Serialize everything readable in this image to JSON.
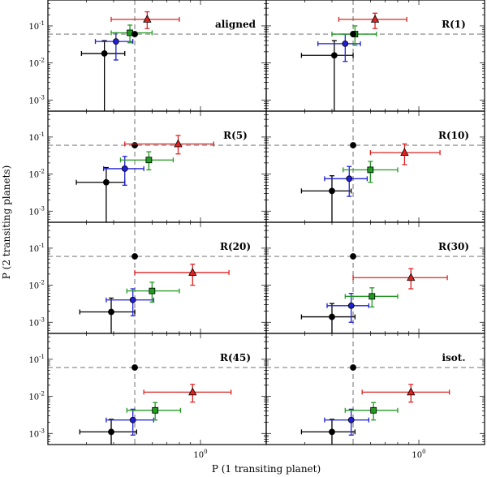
{
  "chart_data": {
    "type": "scatter",
    "xlabel": "P (1 transiting planet)",
    "ylabel": "P (2 transiting planets)",
    "xscale": "log",
    "yscale": "log",
    "xlim": [
      0.2,
      2.0
    ],
    "ylim": [
      0.0005,
      0.5
    ],
    "x_tick_labels": [
      {
        "value": 1,
        "label": "10^0"
      }
    ],
    "y_tick_labels": [
      {
        "value": 0.1,
        "label": "10^-1"
      },
      {
        "value": 0.01,
        "label": "10^-2"
      },
      {
        "value": 0.001,
        "label": "10^-3"
      }
    ],
    "reference_lines": {
      "x": 0.5,
      "y": 0.06
    },
    "series_styles": [
      {
        "name": "black",
        "marker": "circle",
        "color": "#000000"
      },
      {
        "name": "blue",
        "marker": "circle",
        "color": "#1f1fd6"
      },
      {
        "name": "green",
        "marker": "square",
        "color": "#229922"
      },
      {
        "name": "red",
        "marker": "triangle",
        "color": "#dd2222"
      }
    ],
    "panels": [
      {
        "label": "aligned",
        "points": [
          {
            "series": "black",
            "x": 0.363,
            "y": 0.018,
            "xlo": 0.285,
            "xhi": 0.45,
            "ylo": 0.0005,
            "yhi": 0.04
          },
          {
            "series": "blue",
            "x": 0.41,
            "y": 0.038,
            "xlo": 0.33,
            "xhi": 0.49,
            "ylo": 0.012,
            "yhi": 0.065
          },
          {
            "series": "green",
            "x": 0.475,
            "y": 0.065,
            "xlo": 0.39,
            "xhi": 0.6,
            "ylo": 0.035,
            "yhi": 0.105
          },
          {
            "series": "black",
            "x": 0.5,
            "y": 0.06
          },
          {
            "series": "red",
            "x": 0.57,
            "y": 0.15,
            "xlo": 0.39,
            "xhi": 0.8,
            "ylo": 0.085,
            "yhi": 0.24
          }
        ]
      },
      {
        "label": "R(1)",
        "points": [
          {
            "series": "black",
            "x": 0.41,
            "y": 0.016,
            "xlo": 0.29,
            "xhi": 0.5,
            "ylo": 0.0005,
            "yhi": 0.04
          },
          {
            "series": "blue",
            "x": 0.46,
            "y": 0.033,
            "xlo": 0.345,
            "xhi": 0.54,
            "ylo": 0.011,
            "yhi": 0.06
          },
          {
            "series": "green",
            "x": 0.51,
            "y": 0.06,
            "xlo": 0.4,
            "xhi": 0.64,
            "ylo": 0.03,
            "yhi": 0.1
          },
          {
            "series": "black",
            "x": 0.5,
            "y": 0.06
          },
          {
            "series": "red",
            "x": 0.63,
            "y": 0.15,
            "xlo": 0.43,
            "xhi": 0.88,
            "ylo": 0.085,
            "yhi": 0.22
          }
        ]
      },
      {
        "label": "R(5)",
        "points": [
          {
            "series": "black",
            "x": 0.37,
            "y": 0.006,
            "xlo": 0.27,
            "xhi": 0.45,
            "ylo": 0.0005,
            "yhi": 0.015
          },
          {
            "series": "blue",
            "x": 0.45,
            "y": 0.014,
            "xlo": 0.36,
            "xhi": 0.55,
            "ylo": 0.005,
            "yhi": 0.03
          },
          {
            "series": "green",
            "x": 0.58,
            "y": 0.024,
            "xlo": 0.43,
            "xhi": 0.75,
            "ylo": 0.013,
            "yhi": 0.04
          },
          {
            "series": "black",
            "x": 0.5,
            "y": 0.06
          },
          {
            "series": "red",
            "x": 0.79,
            "y": 0.065,
            "xlo": 0.45,
            "xhi": 1.15,
            "ylo": 0.035,
            "yhi": 0.11
          }
        ]
      },
      {
        "label": "R(10)",
        "points": [
          {
            "series": "black",
            "x": 0.4,
            "y": 0.0035,
            "xlo": 0.29,
            "xhi": 0.49,
            "ylo": 0.0005,
            "yhi": 0.009
          },
          {
            "series": "blue",
            "x": 0.48,
            "y": 0.0075,
            "xlo": 0.37,
            "xhi": 0.58,
            "ylo": 0.0025,
            "yhi": 0.016
          },
          {
            "series": "green",
            "x": 0.6,
            "y": 0.013,
            "xlo": 0.45,
            "xhi": 0.8,
            "ylo": 0.006,
            "yhi": 0.022
          },
          {
            "series": "black",
            "x": 0.5,
            "y": 0.06
          },
          {
            "series": "red",
            "x": 0.86,
            "y": 0.038,
            "xlo": 0.6,
            "xhi": 1.25,
            "ylo": 0.018,
            "yhi": 0.065
          }
        ]
      },
      {
        "label": "R(20)",
        "points": [
          {
            "series": "black",
            "x": 0.39,
            "y": 0.0019,
            "xlo": 0.28,
            "xhi": 0.5,
            "ylo": 0.0005,
            "yhi": 0.0045
          },
          {
            "series": "blue",
            "x": 0.49,
            "y": 0.004,
            "xlo": 0.37,
            "xhi": 0.61,
            "ylo": 0.0015,
            "yhi": 0.008
          },
          {
            "series": "green",
            "x": 0.6,
            "y": 0.007,
            "xlo": 0.46,
            "xhi": 0.8,
            "ylo": 0.0035,
            "yhi": 0.012
          },
          {
            "series": "black",
            "x": 0.5,
            "y": 0.06
          },
          {
            "series": "red",
            "x": 0.92,
            "y": 0.022,
            "xlo": 0.5,
            "xhi": 1.35,
            "ylo": 0.01,
            "yhi": 0.037
          }
        ]
      },
      {
        "label": "R(30)",
        "points": [
          {
            "series": "black",
            "x": 0.4,
            "y": 0.0014,
            "xlo": 0.29,
            "xhi": 0.51,
            "ylo": 0.0005,
            "yhi": 0.0032
          },
          {
            "series": "blue",
            "x": 0.49,
            "y": 0.0028,
            "xlo": 0.38,
            "xhi": 0.59,
            "ylo": 0.001,
            "yhi": 0.006
          },
          {
            "series": "green",
            "x": 0.61,
            "y": 0.005,
            "xlo": 0.46,
            "xhi": 0.8,
            "ylo": 0.0026,
            "yhi": 0.0085
          },
          {
            "series": "black",
            "x": 0.5,
            "y": 0.06
          },
          {
            "series": "red",
            "x": 0.92,
            "y": 0.016,
            "xlo": 0.5,
            "xhi": 1.35,
            "ylo": 0.008,
            "yhi": 0.028
          }
        ]
      },
      {
        "label": "R(45)",
        "points": [
          {
            "series": "black",
            "x": 0.39,
            "y": 0.0011,
            "xlo": 0.28,
            "xhi": 0.51,
            "ylo": 0.0005,
            "yhi": 0.0024
          },
          {
            "series": "blue",
            "x": 0.49,
            "y": 0.0023,
            "xlo": 0.37,
            "xhi": 0.61,
            "ylo": 0.0009,
            "yhi": 0.0045
          },
          {
            "series": "green",
            "x": 0.62,
            "y": 0.0042,
            "xlo": 0.46,
            "xhi": 0.81,
            "ylo": 0.0023,
            "yhi": 0.0068
          },
          {
            "series": "black",
            "x": 0.5,
            "y": 0.06
          },
          {
            "series": "red",
            "x": 0.92,
            "y": 0.013,
            "xlo": 0.55,
            "xhi": 1.38,
            "ylo": 0.007,
            "yhi": 0.021
          }
        ]
      },
      {
        "label": "isot.",
        "points": [
          {
            "series": "black",
            "x": 0.4,
            "y": 0.0011,
            "xlo": 0.29,
            "xhi": 0.51,
            "ylo": 0.0005,
            "yhi": 0.0024
          },
          {
            "series": "blue",
            "x": 0.49,
            "y": 0.0023,
            "xlo": 0.37,
            "xhi": 0.59,
            "ylo": 0.0009,
            "yhi": 0.0045
          },
          {
            "series": "green",
            "x": 0.62,
            "y": 0.0042,
            "xlo": 0.46,
            "xhi": 0.8,
            "ylo": 0.0023,
            "yhi": 0.0068
          },
          {
            "series": "black",
            "x": 0.5,
            "y": 0.06
          },
          {
            "series": "red",
            "x": 0.92,
            "y": 0.013,
            "xlo": 0.55,
            "xhi": 1.38,
            "ylo": 0.007,
            "yhi": 0.021
          }
        ]
      }
    ]
  }
}
